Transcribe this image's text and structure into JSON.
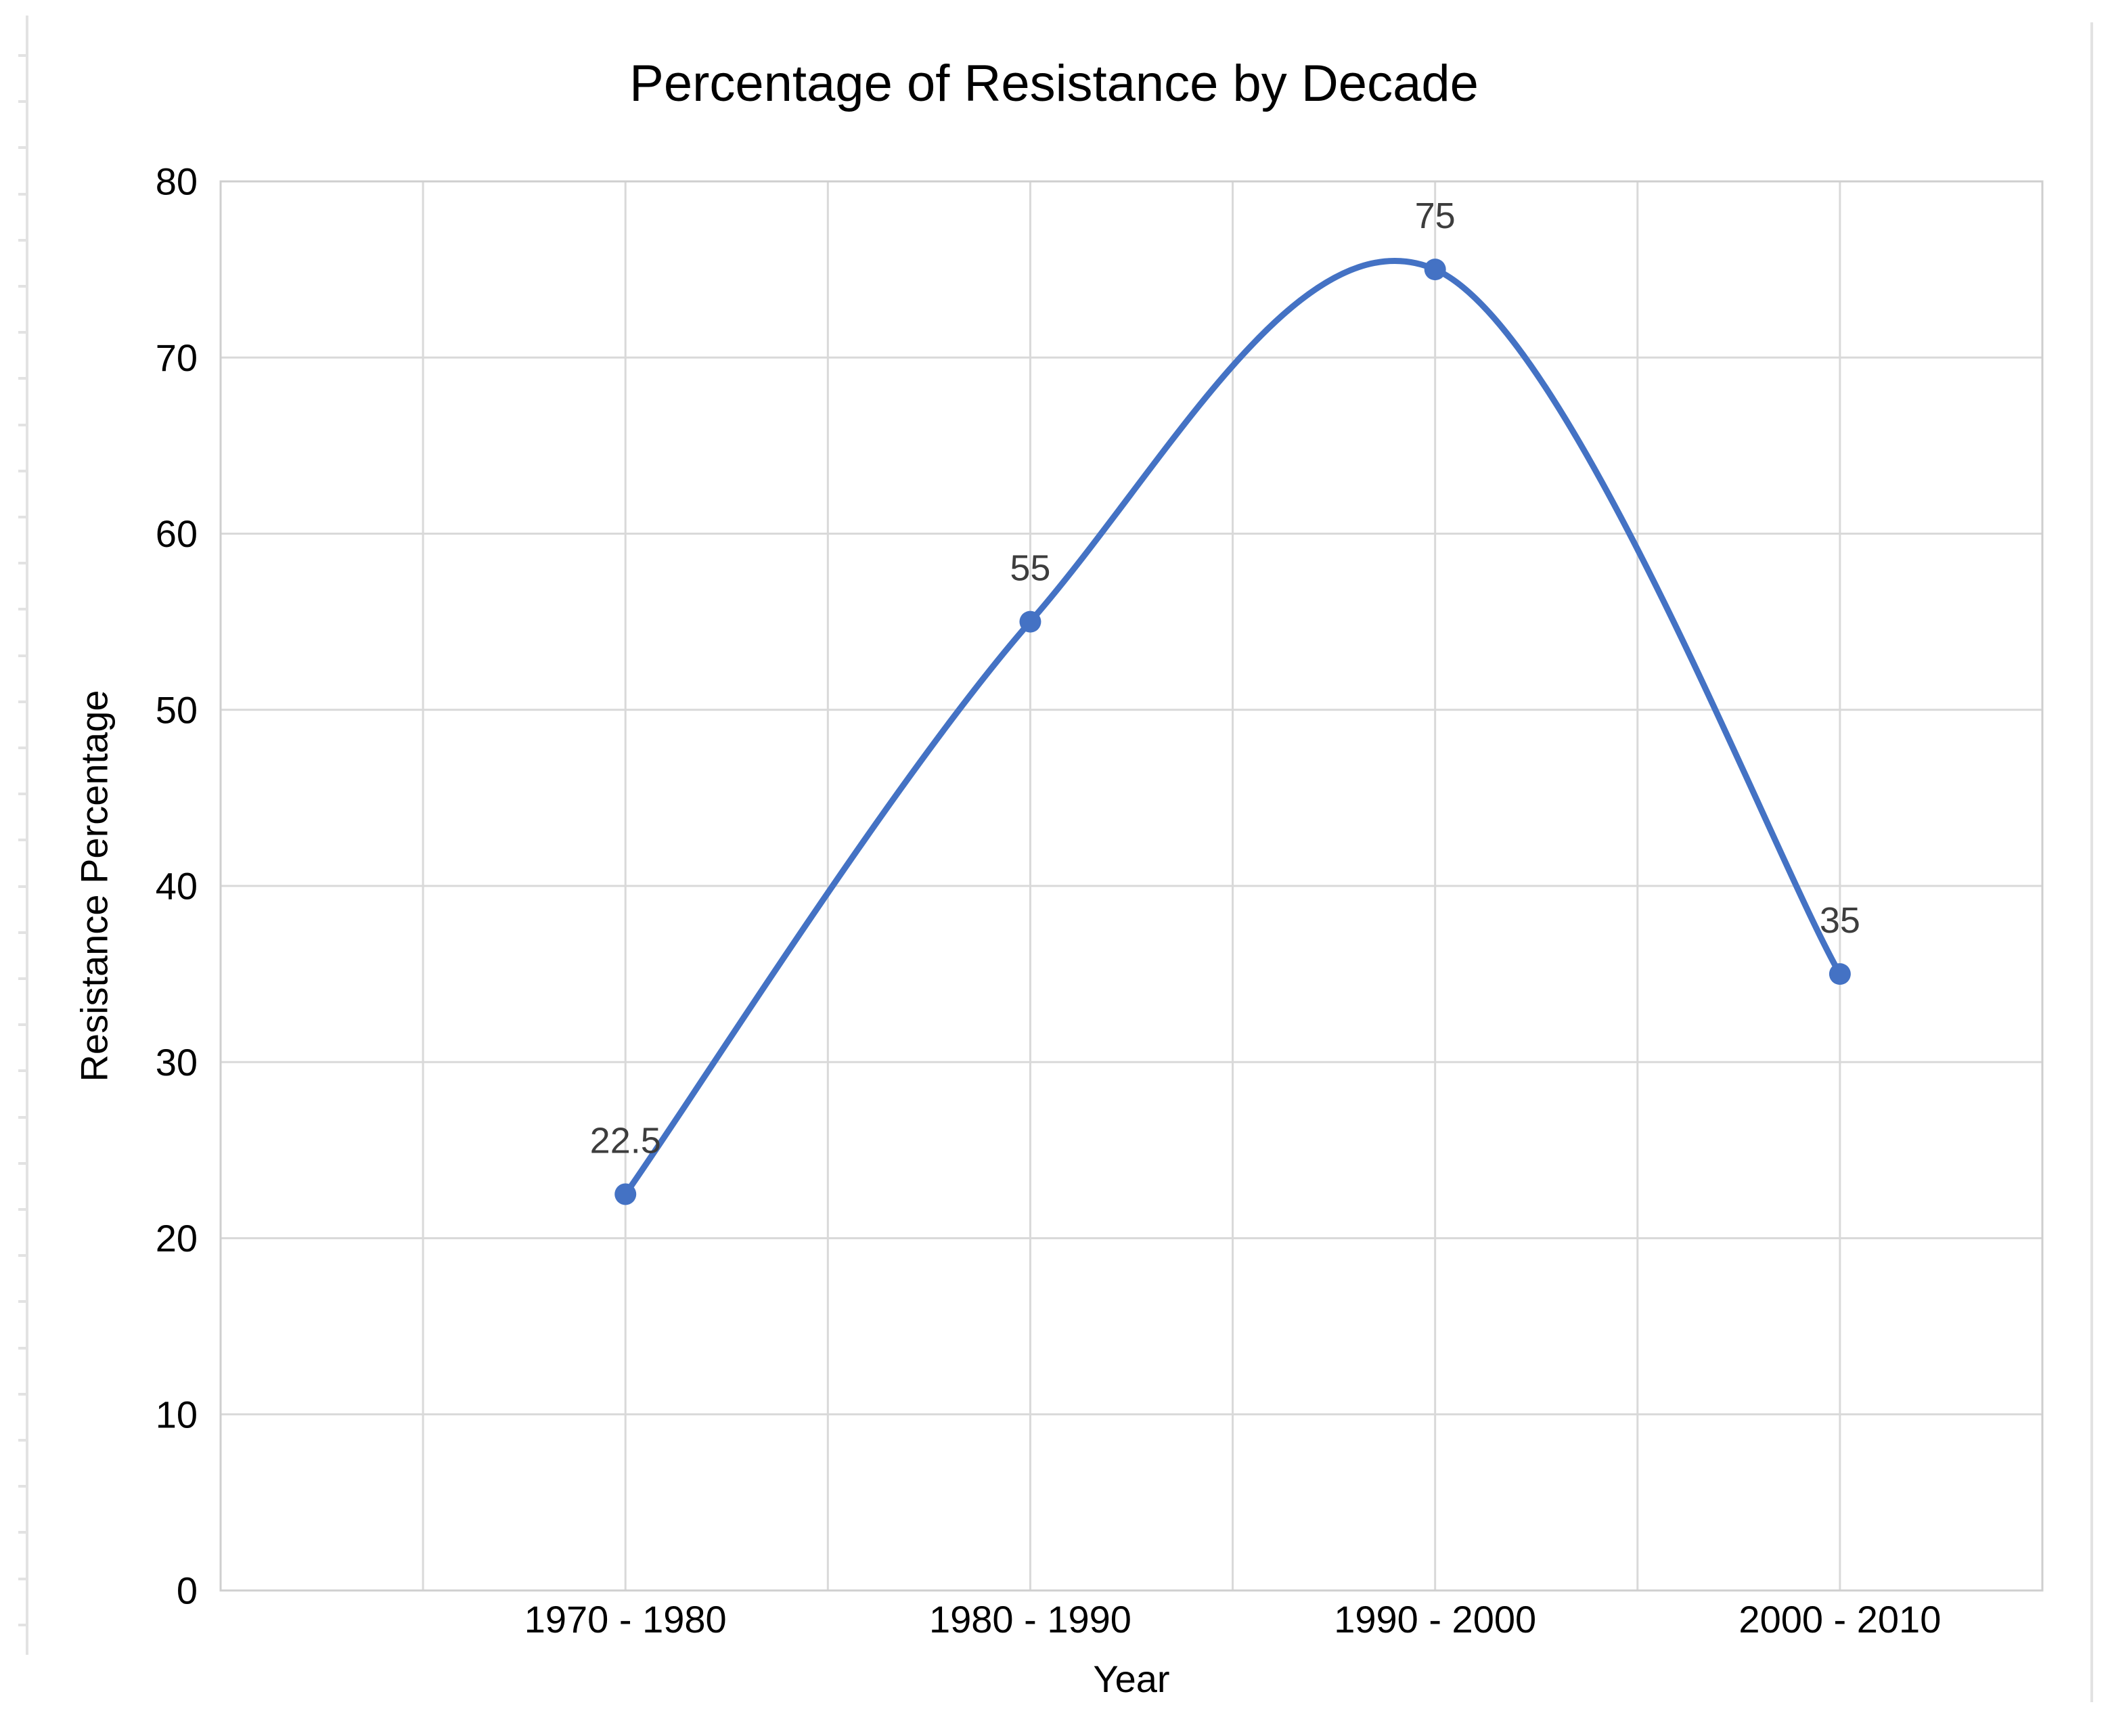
{
  "window": {
    "background_color": "#ffffff",
    "guide_color": "#e2e2e2"
  },
  "chart_data": {
    "type": "line",
    "title": "Percentage of Resistance by Decade",
    "xlabel": "Year",
    "ylabel": "Resistance Percentage",
    "categories": [
      "1970 - 1980",
      "1980 - 1990",
      "1990 - 2000",
      "2000 - 2010"
    ],
    "series": [
      {
        "name": "Resistance Percentage",
        "values": [
          22.5,
          55,
          75,
          35
        ],
        "color": "#4472c4"
      }
    ],
    "data_labels": [
      "22.5",
      "55",
      "75",
      "35"
    ],
    "y_ticks": [
      "0",
      "10",
      "20",
      "30",
      "40",
      "50",
      "60",
      "70",
      "80"
    ],
    "ylim": [
      0,
      80
    ],
    "grid": true,
    "smooth_line": true,
    "legend": "none",
    "marker_style": "circle",
    "line_color": "#4472c4",
    "gridline_color": "#d9d9d9",
    "border_color": "#cfcfcf",
    "axis_text_color": "#000000",
    "data_label_color": "#3d3d3d"
  }
}
